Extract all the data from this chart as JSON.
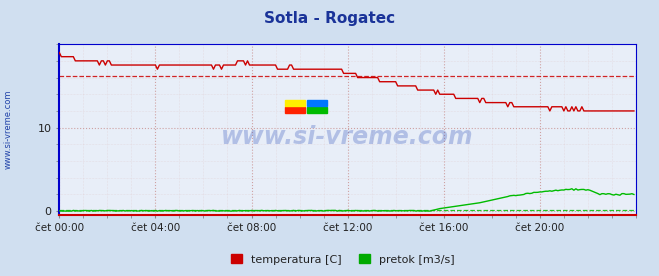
{
  "title": "Sotla - Rogatec",
  "title_color": "#1a3399",
  "bg_color": "#d0dff0",
  "plot_bg_color": "#e8eef8",
  "x_ticks_labels": [
    "čet 00:00",
    "čet 04:00",
    "čet 08:00",
    "čet 12:00",
    "čet 16:00",
    "čet 20:00"
  ],
  "x_ticks_pos": [
    0,
    48,
    96,
    144,
    192,
    240
  ],
  "y_ticks": [
    0,
    10
  ],
  "ylim": [
    -0.5,
    20
  ],
  "xlim": [
    0,
    288
  ],
  "grid_color": "#cc9999",
  "grid_minor_color": "#ddbbbb",
  "watermark": "www.si-vreme.com",
  "watermark_color": "#3355bb",
  "left_label": "www.si-vreme.com",
  "left_label_color": "#2244aa",
  "legend_items": [
    "temperatura [C]",
    "pretok [m3/s]"
  ],
  "legend_colors": [
    "#cc0000",
    "#00aa00"
  ],
  "temp_color": "#cc0000",
  "flow_color": "#00bb00",
  "dashed_temp_y": 16.2,
  "dashed_flow_y": 0.18,
  "dashed_color_temp": "#cc0000",
  "dashed_color_flow": "#00bb00",
  "border_left_color": "#0000cc",
  "border_bottom_color": "#cc0000",
  "n_points": 288
}
